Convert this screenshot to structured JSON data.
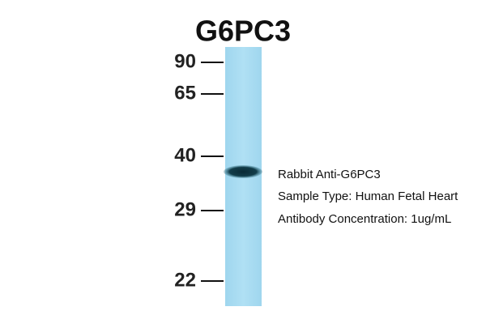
{
  "title": "G6PC3",
  "markers": [
    "90",
    "65",
    "40",
    "29",
    "22"
  ],
  "annotations": [
    "Rabbit Anti-G6PC3",
    "Sample Type: Human Fetal Heart",
    "Antibody Concentration: 1ug/mL"
  ]
}
